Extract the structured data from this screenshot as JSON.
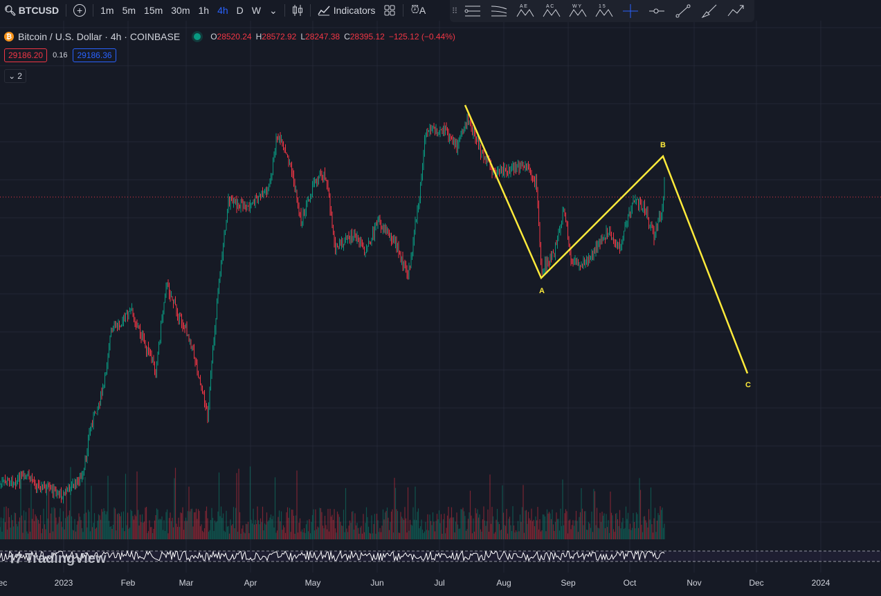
{
  "toolbar": {
    "symbol": "BTCUSD",
    "intervals": [
      "1m",
      "5m",
      "15m",
      "30m",
      "1h",
      "4h",
      "D",
      "W"
    ],
    "active_interval": "4h",
    "indicators_label": "Indicators",
    "alert_label": "A"
  },
  "drawbar": {
    "tools": [
      "pitchfork-icon",
      "fib-icon",
      "pattern-xabcd-icon",
      "pattern-abc-icon",
      "pattern-wxy-icon",
      "pattern-15-icon",
      "crosshair-icon",
      "horizontal-ray-icon",
      "trend-line-icon",
      "brush-icon",
      "path-icon"
    ],
    "pattern_labels": {
      "xabcd": "A E",
      "abc": "A C",
      "wxy": "W Y",
      "p15": "1 5"
    }
  },
  "legend": {
    "title": "Bitcoin / U.S. Dollar · 4h · COINBASE",
    "ohlc": [
      {
        "k": "O",
        "v": "28520.24"
      },
      {
        "k": "H",
        "v": "28572.92"
      },
      {
        "k": "L",
        "v": "28247.38"
      },
      {
        "k": "C",
        "v": "28395.12"
      }
    ],
    "change": "−125.12 (−0.44%)"
  },
  "prices": {
    "bid": "29186.20",
    "spread": "0.16",
    "ask": "29186.36"
  },
  "collapse_count": "2",
  "watermark": "TradingView",
  "x_axis": [
    "ec",
    "2023",
    "Feb",
    "Mar",
    "Apr",
    "May",
    "Jun",
    "Jul",
    "Aug",
    "Sep",
    "Oct",
    "Nov",
    "Dec",
    "2024"
  ],
  "colors": {
    "up": "#089981",
    "down": "#f23645",
    "wave": "#ffeb3b",
    "price_line": "#f23645",
    "bg": "#161a25"
  },
  "wave_labels": {
    "a": "A",
    "b": "B",
    "c": "C"
  },
  "chart_data": {
    "type": "candlestick",
    "symbol": "BTCUSD",
    "interval": "4h",
    "x": [
      "2023",
      "Feb",
      "Mar",
      "Apr",
      "May",
      "Jun",
      "Jul",
      "Aug",
      "Sep",
      "Oct"
    ],
    "close_approx": [
      16600,
      23100,
      23500,
      28400,
      29200,
      27200,
      30400,
      29300,
      26000,
      27000
    ],
    "last_price": 29186.2,
    "annotation": "Elliott ABC correction: start near Jul high, A near Aug low, B at current, C projected",
    "grid": true
  }
}
